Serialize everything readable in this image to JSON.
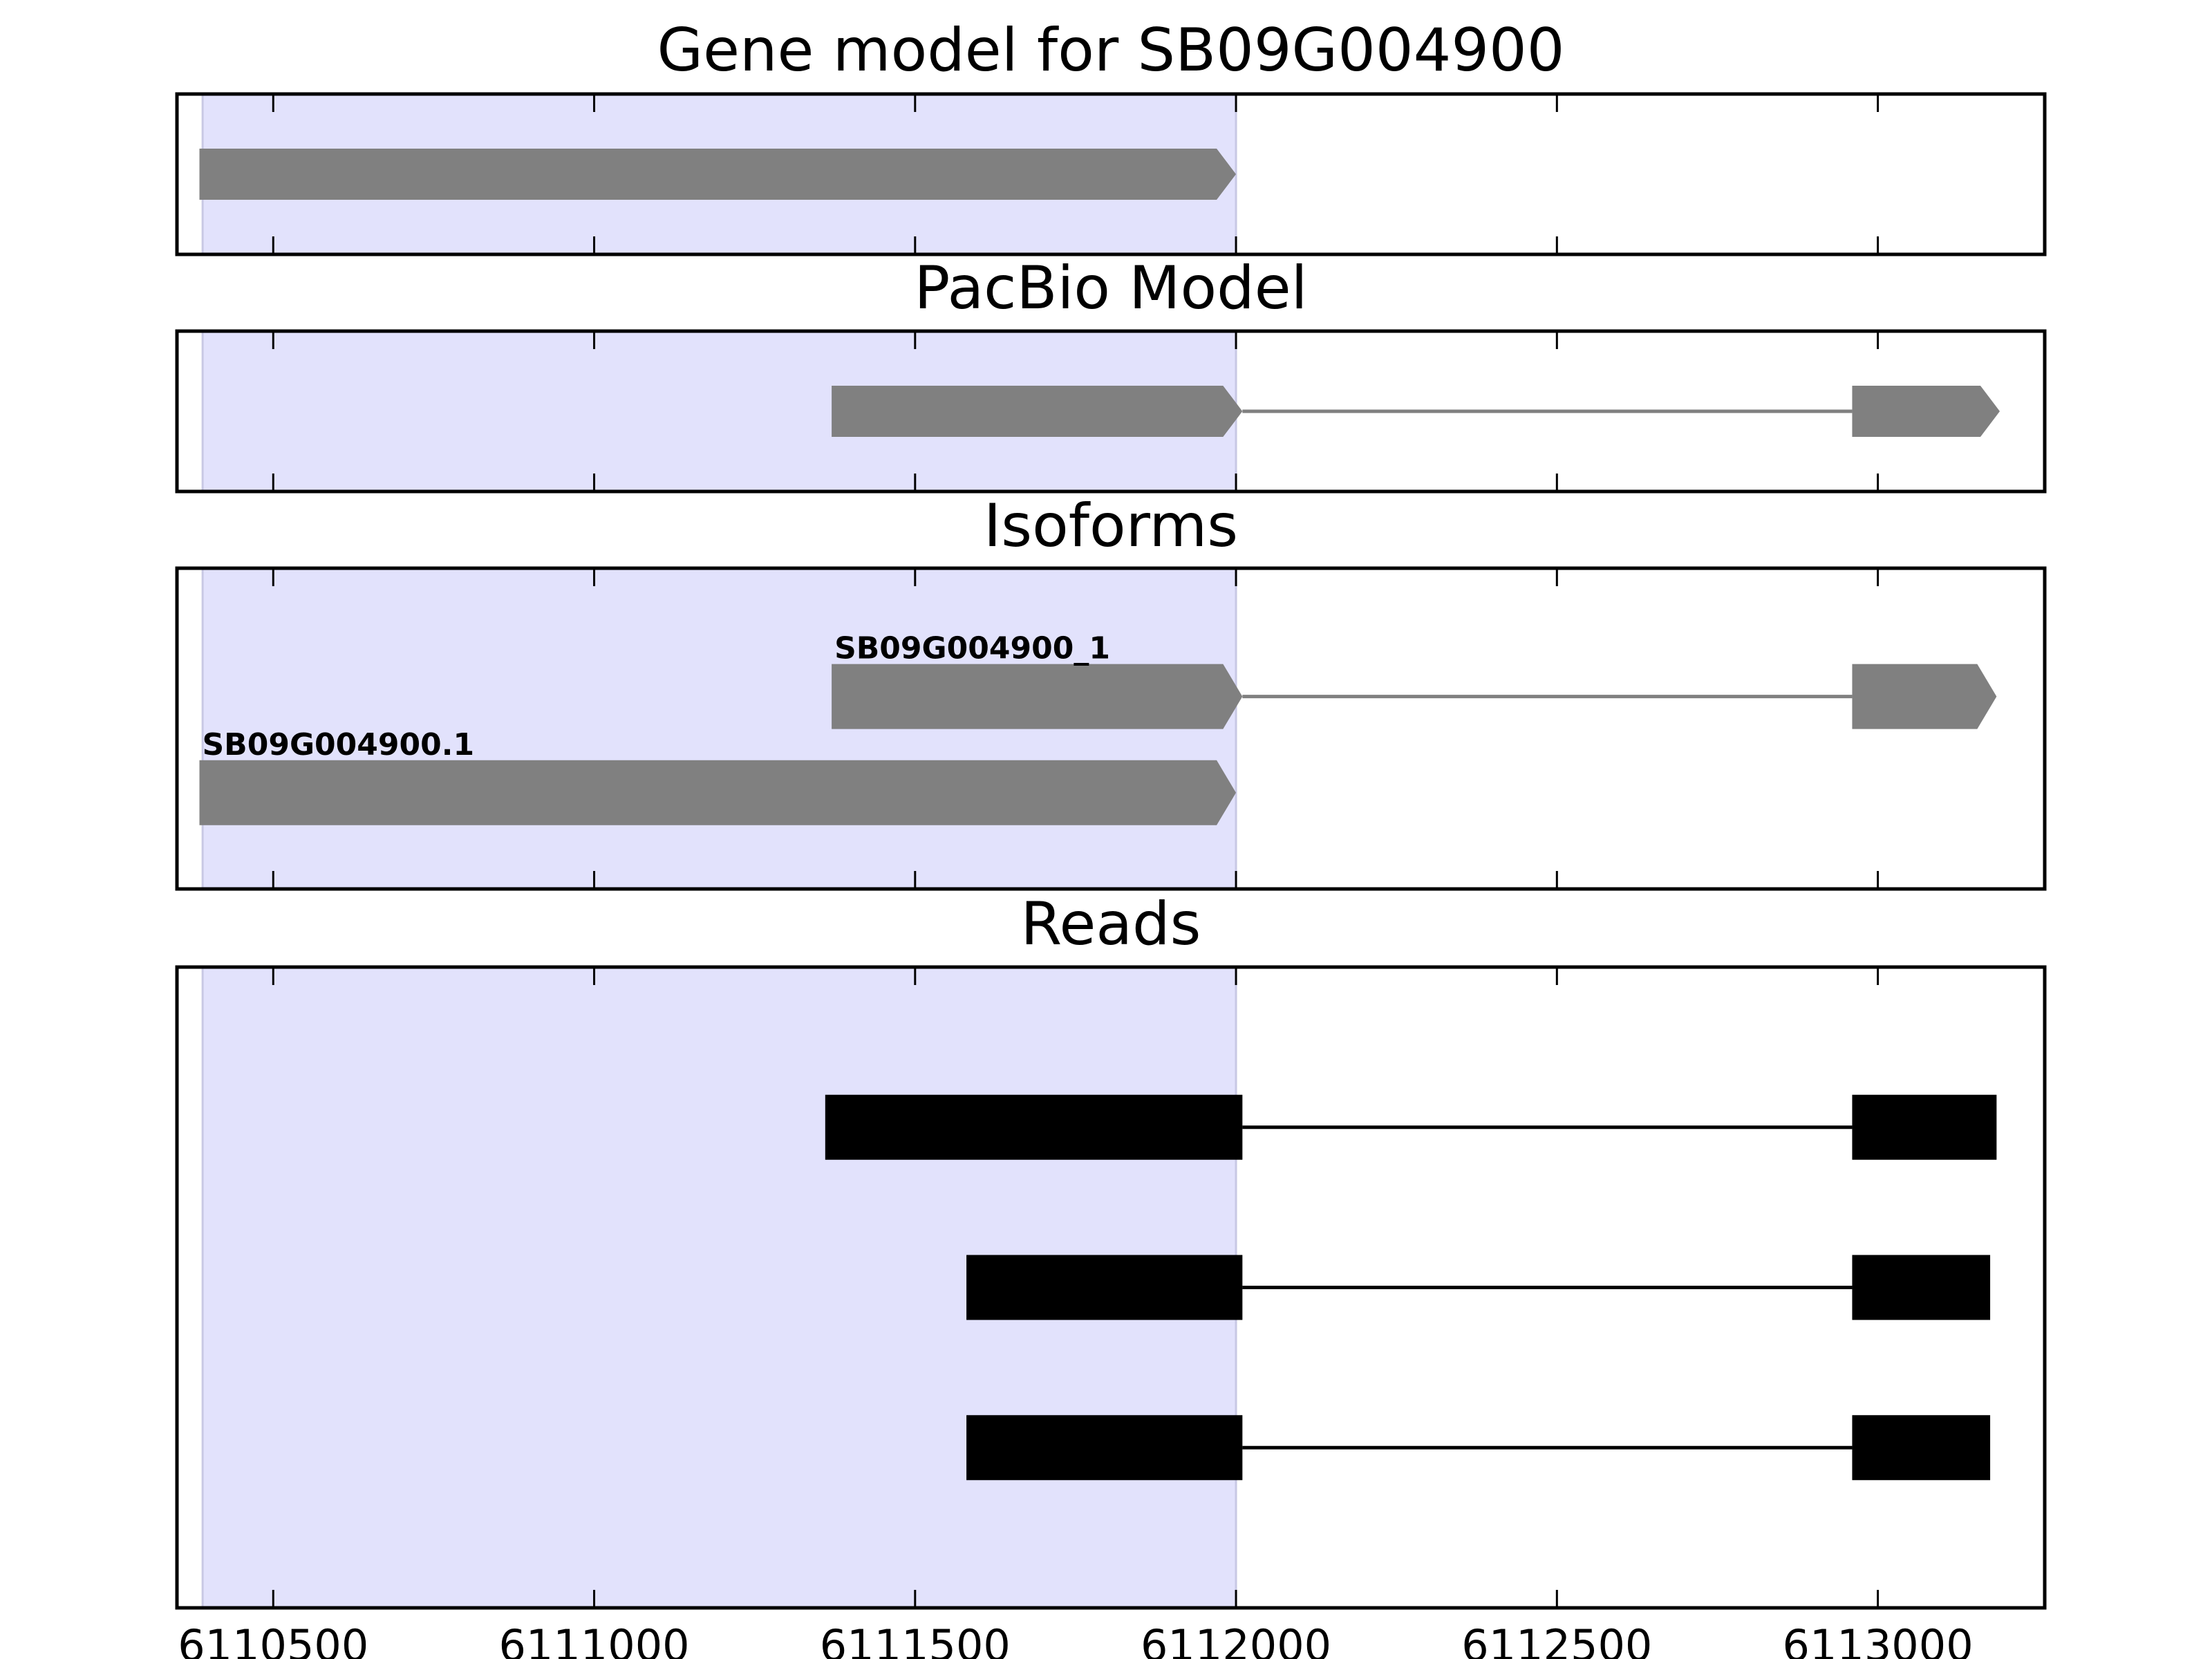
{
  "chart_data": {
    "type": "gene-track",
    "x_ticks": [
      6110500,
      6111000,
      6111500,
      6112000,
      6112500,
      6113000
    ],
    "xlim": [
      6110350,
      6113260
    ],
    "highlight_region": {
      "start": 6110390,
      "end": 6112000,
      "color": "#e2e2fc"
    },
    "colors": {
      "model": "#808080",
      "read": "#000000",
      "axes": "#000000"
    },
    "panels": [
      {
        "id": "gene-model",
        "title": "Gene model for SB09G004900",
        "transcripts": [
          {
            "label": "",
            "y": 0.5,
            "exons": [
              [
                6110385,
                6112000
              ]
            ]
          }
        ]
      },
      {
        "id": "pacbio-model",
        "title": "PacBio Model",
        "transcripts": [
          {
            "label": "",
            "y": 0.5,
            "exons": [
              [
                6111370,
                6112010
              ],
              [
                6112960,
                6113190
              ]
            ]
          }
        ]
      },
      {
        "id": "isoforms",
        "title": "Isoforms",
        "transcripts": [
          {
            "label": "SB09G004900_1",
            "y": 0.6,
            "exons": [
              [
                6111370,
                6112010
              ],
              [
                6112960,
                6113185
              ]
            ]
          },
          {
            "label": "SB09G004900.1",
            "y": 0.3,
            "exons": [
              [
                6110385,
                6112000
              ]
            ]
          }
        ]
      },
      {
        "id": "reads",
        "title": "Reads",
        "reads": [
          {
            "y": 0.75,
            "exons": [
              [
                6111360,
                6112010
              ],
              [
                6112960,
                6113185
              ]
            ]
          },
          {
            "y": 0.5,
            "exons": [
              [
                6111580,
                6112010
              ],
              [
                6112960,
                6113175
              ]
            ]
          },
          {
            "y": 0.25,
            "exons": [
              [
                6111580,
                6112010
              ],
              [
                6112960,
                6113175
              ]
            ]
          }
        ]
      }
    ]
  }
}
